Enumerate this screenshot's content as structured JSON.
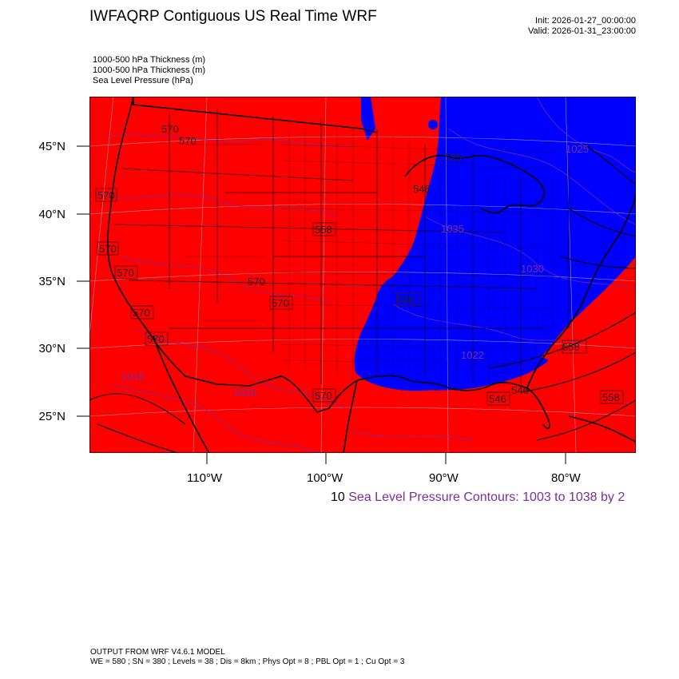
{
  "header": {
    "title": "IWFAQRP Contiguous US Real Time WRF",
    "init": "Init: 2026-01-27_00:00:00",
    "valid": "Valid: 2026-01-31_23:00:00"
  },
  "fields": [
    "1000-500 hPa Thickness   (m)",
    "1000-500 hPa Thickness   (m)",
    "Sea Level Pressure   (hPa)"
  ],
  "axes": {
    "lat_labels": [
      "45°N",
      "40°N",
      "35°N",
      "30°N",
      "25°N"
    ],
    "lon_labels": [
      "110°W",
      "100°W",
      "90°W",
      "80°W"
    ]
  },
  "colors": {
    "warm_fill": "#ff0000",
    "cold_fill": "#0000ff",
    "slp_contour": "#7b2d9e",
    "borders": "#000000"
  },
  "contour_labels": [
    {
      "text": "570"
    },
    {
      "text": "570"
    },
    {
      "text": "570"
    },
    {
      "text": "570"
    },
    {
      "text": "570"
    },
    {
      "text": "570"
    },
    {
      "text": "570"
    },
    {
      "text": "570"
    },
    {
      "text": "570"
    },
    {
      "text": "570"
    },
    {
      "text": "558"
    },
    {
      "text": "546"
    },
    {
      "text": "546"
    },
    {
      "text": "546"
    },
    {
      "text": "546"
    },
    {
      "text": "558"
    },
    {
      "text": "558"
    },
    {
      "text": "535"
    },
    {
      "text": "1025"
    },
    {
      "text": "1022"
    },
    {
      "text": "1020"
    },
    {
      "text": "1035"
    },
    {
      "text": "1030"
    },
    {
      "text": "1015"
    }
  ],
  "contour_note": {
    "number": "10",
    "text": "Sea Level Pressure Contours: 1003 to 1038 by 2"
  },
  "footer": {
    "line1": "OUTPUT FROM WRF V4.6.1 MODEL",
    "line2": "WE = 580 ; SN = 380 ; Levels = 38 ; Dis = 8km ; Phys Opt = 8 ; PBL Opt = 1 ; Cu Opt = 3"
  }
}
